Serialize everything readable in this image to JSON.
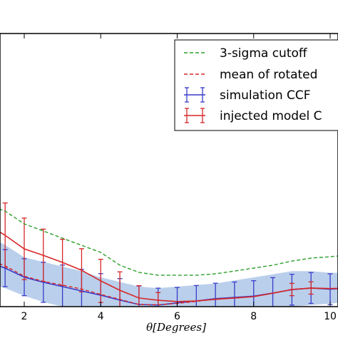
{
  "chart_data": {
    "type": "line",
    "xlabel": "θ[Degrees]",
    "x_ticks": [
      "2",
      "4",
      "6",
      "8",
      "10"
    ],
    "xlim": [
      1.2,
      10.4
    ],
    "ylim": [
      0,
      1
    ],
    "grid": false,
    "legend_position": "top-right",
    "legend": [
      {
        "label": "3-sigma cutoff",
        "style": "dashed",
        "color": "#2ca02c"
      },
      {
        "label": "mean of rotated",
        "style": "dashed",
        "color": "#d62728"
      },
      {
        "label": "simulation CCF",
        "style": "errorbar",
        "color": "#3a3ac8"
      },
      {
        "label": "injected model C",
        "style": "errorbar",
        "color": "#d62728"
      }
    ],
    "series": [
      {
        "key": "cutoff",
        "color": "#2ca02c",
        "x": [
          1.2,
          1.5,
          2.0,
          2.5,
          3.0,
          3.5,
          4.0,
          4.5,
          5.0,
          5.5,
          6.0,
          6.5,
          7.0,
          7.5,
          8.0,
          8.5,
          9.0,
          9.5,
          10.0,
          10.4
        ],
        "y": [
          0.648,
          0.62,
          0.537,
          0.491,
          0.444,
          0.398,
          0.352,
          0.269,
          0.222,
          0.204,
          0.204,
          0.204,
          0.213,
          0.231,
          0.25,
          0.269,
          0.296,
          0.315,
          0.324,
          0.333
        ]
      },
      {
        "key": "mean_rotated",
        "color": "#d62728",
        "x": [
          1.2,
          1.5,
          2.0,
          2.5,
          3.0,
          3.5,
          4.0,
          4.5,
          5.0,
          5.5,
          6.0,
          6.5,
          7.0,
          7.5,
          8.0,
          8.5,
          9.0,
          9.5,
          10.0,
          10.4
        ],
        "y": [
          0.291,
          0.265,
          0.197,
          0.164,
          0.14,
          0.114,
          0.079,
          0.047,
          0.014,
          0.012,
          0.021,
          0.034,
          0.049,
          0.056,
          0.065,
          0.087,
          0.112,
          0.119,
          0.117,
          0.119
        ]
      },
      {
        "key": "simulation",
        "color": "#3a3ac8",
        "x": [
          1.2,
          1.5,
          2.0,
          2.5,
          3.0,
          3.5,
          4.0,
          4.5,
          5.0,
          5.5,
          6.0,
          6.5,
          7.0,
          7.5,
          8.0,
          8.5,
          9.0,
          9.5,
          10.0,
          10.4
        ],
        "y": [
          0.277,
          0.25,
          0.191,
          0.158,
          0.13,
          0.102,
          0.074,
          0.042,
          0.014,
          0.01,
          0.024,
          0.037,
          0.052,
          0.06,
          0.068,
          0.088,
          0.11,
          0.121,
          0.113,
          0.12
        ],
        "band_lower": [
          0.14,
          0.12,
          0.07,
          0.03,
          0.0,
          -0.02,
          -0.05,
          -0.08,
          -0.1,
          -0.1,
          -0.08,
          -0.07,
          -0.06,
          -0.05,
          -0.04,
          -0.02,
          0.0,
          0.01,
          0.02,
          0.03
        ],
        "band_upper": [
          0.44,
          0.4,
          0.32,
          0.29,
          0.26,
          0.23,
          0.19,
          0.16,
          0.13,
          0.12,
          0.13,
          0.14,
          0.15,
          0.17,
          0.19,
          0.21,
          0.23,
          0.23,
          0.22,
          0.22
        ],
        "errorbar_x": [
          1.5,
          2.0,
          2.5,
          3.0,
          3.5,
          4.0,
          4.5,
          5.0,
          5.5,
          6.0,
          6.5,
          7.0,
          7.5,
          8.0,
          8.5,
          9.0,
          9.5,
          10.0
        ],
        "errorbar_y": [
          0.25,
          0.191,
          0.158,
          0.13,
          0.102,
          0.074,
          0.042,
          0.014,
          0.01,
          0.024,
          0.037,
          0.052,
          0.06,
          0.068,
          0.088,
          0.11,
          0.121,
          0.113
        ],
        "errorbar_err": [
          0.12,
          0.12,
          0.13,
          0.14,
          0.14,
          0.14,
          0.14,
          0.12,
          0.11,
          0.1,
          0.1,
          0.1,
          0.1,
          0.1,
          0.1,
          0.1,
          0.1,
          0.1
        ]
      },
      {
        "key": "injected",
        "color": "#d62728",
        "x": [
          1.2,
          1.5,
          2.0,
          2.5,
          3.0,
          3.5,
          4.0,
          4.5,
          5.0,
          5.5,
          6.0,
          6.5,
          7.0,
          7.5,
          8.0,
          8.5,
          9.0,
          9.5,
          10.0,
          10.4
        ],
        "y": [
          0.509,
          0.463,
          0.375,
          0.333,
          0.287,
          0.236,
          0.167,
          0.106,
          0.056,
          0.041,
          0.033,
          0.037,
          0.047,
          0.056,
          0.065,
          0.087,
          0.111,
          0.121,
          0.117,
          0.12
        ],
        "errorbar_x": [
          1.5,
          2.0,
          2.5,
          3.0,
          3.5,
          4.0,
          4.5,
          5.0,
          5.5,
          9.0,
          9.5
        ],
        "errorbar_y": [
          0.463,
          0.375,
          0.333,
          0.287,
          0.236,
          0.167,
          0.106,
          0.056,
          0.041,
          0.111,
          0.121
        ],
        "errorbar_err": [
          0.21,
          0.2,
          0.17,
          0.15,
          0.14,
          0.14,
          0.12,
          0.08,
          0.05,
          0.04,
          0.04
        ]
      }
    ]
  }
}
